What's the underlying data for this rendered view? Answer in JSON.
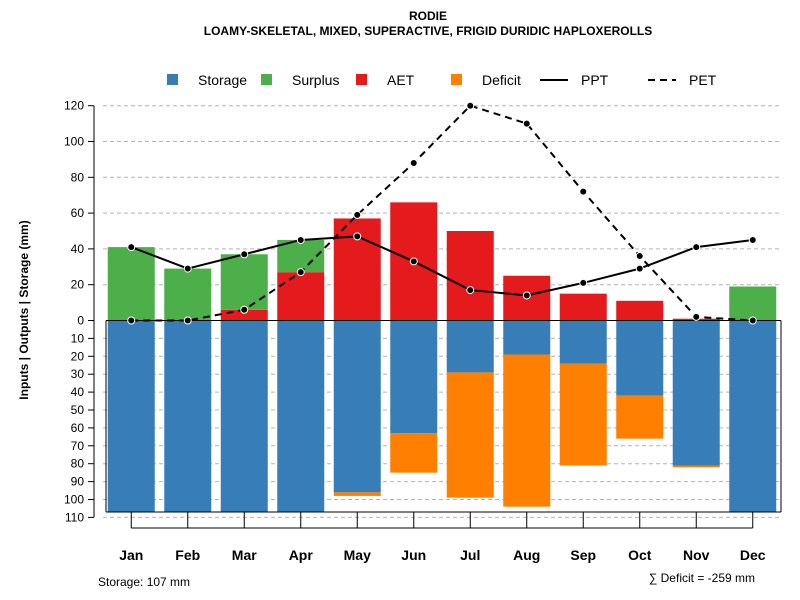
{
  "chart_data": {
    "type": "bar",
    "title": "RODIE",
    "subtitle": "LOAMY-SKELETAL, MIXED, SUPERACTIVE, FRIGID DURIDIC HAPLOXEROLLS",
    "ylabel": "Inputs | Outputs | Storage     (mm)",
    "categories": [
      "Jan",
      "Feb",
      "Mar",
      "Apr",
      "May",
      "Jun",
      "Jul",
      "Aug",
      "Sep",
      "Oct",
      "Nov",
      "Dec"
    ],
    "upper_axis": {
      "range": [
        0,
        120
      ],
      "ticks": [
        "0",
        "20",
        "40",
        "60",
        "80",
        "100",
        "120"
      ]
    },
    "lower_axis": {
      "range": [
        0,
        110
      ],
      "ticks": [
        "0",
        "10",
        "20",
        "30",
        "40",
        "50",
        "60",
        "70",
        "80",
        "90",
        "100",
        "110"
      ]
    },
    "legend": [
      {
        "name": "Storage",
        "kind": "box",
        "color": "#377eb8"
      },
      {
        "name": "Surplus",
        "kind": "box",
        "color": "#4daf4a"
      },
      {
        "name": "AET",
        "kind": "box",
        "color": "#e41a1c"
      },
      {
        "name": "Deficit",
        "kind": "box",
        "color": "#ff7f00"
      },
      {
        "name": "PPT",
        "kind": "solid-line",
        "color": "#000000"
      },
      {
        "name": "PET",
        "kind": "dashed-line",
        "color": "#000000"
      }
    ],
    "series": [
      {
        "name": "AET",
        "values": [
          0,
          0,
          6,
          27,
          57,
          66,
          50,
          25,
          15,
          11,
          1,
          0
        ]
      },
      {
        "name": "Surplus",
        "values": [
          41,
          29,
          31,
          18,
          0,
          0,
          0,
          0,
          0,
          0,
          0,
          19
        ]
      },
      {
        "name": "Storage",
        "values": [
          107,
          107,
          107,
          107,
          96,
          63,
          29,
          19,
          24,
          42,
          81,
          107
        ]
      },
      {
        "name": "Deficit",
        "values": [
          0,
          0,
          0,
          0,
          2,
          22,
          70,
          85,
          57,
          24,
          1,
          0
        ]
      },
      {
        "name": "PPT",
        "values": [
          41,
          29,
          37,
          45,
          47,
          33,
          17,
          14,
          21,
          29,
          41,
          45
        ]
      },
      {
        "name": "PET",
        "values": [
          0,
          0,
          6,
          27,
          59,
          88,
          120,
          110,
          72,
          36,
          2,
          0
        ]
      }
    ],
    "storage_note": "Storage: 107 mm",
    "deficit_note": "∑ Deficit = -259 mm",
    "grid": true
  }
}
